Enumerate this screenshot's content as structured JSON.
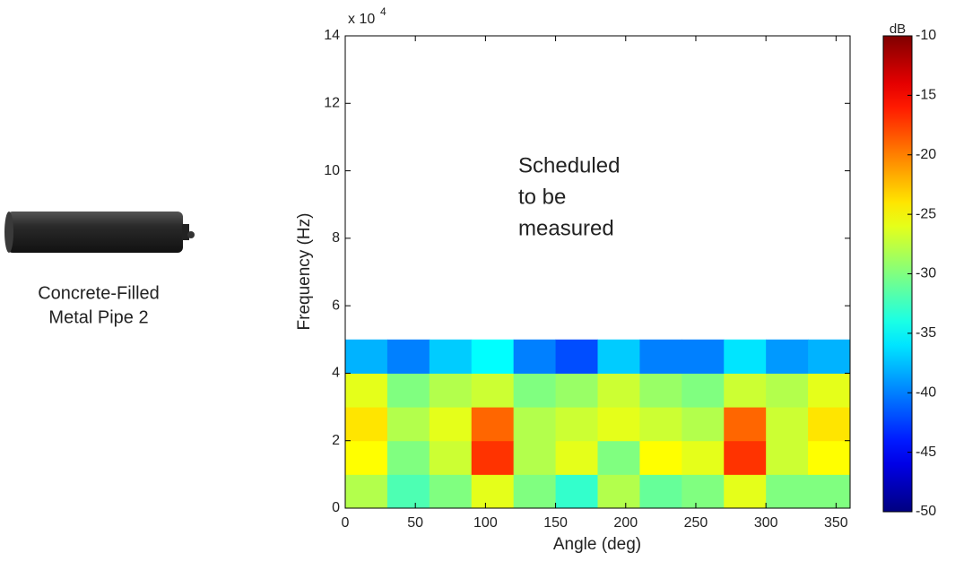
{
  "caption": [
    "Concrete-Filled",
    "Metal Pipe 2"
  ],
  "chart_data": {
    "type": "heatmap",
    "xlabel": "Angle (deg)",
    "ylabel": "Frequency (Hz)",
    "annotation": [
      "Scheduled",
      "to be",
      "measured"
    ],
    "y_scale_label": "x 10",
    "y_scale_exponent": "4",
    "xlim": [
      0,
      360
    ],
    "xticks": [
      0,
      50,
      100,
      150,
      200,
      250,
      300,
      350
    ],
    "ylim": [
      0,
      140000
    ],
    "yticks": [
      {
        "value": 0,
        "label": "0"
      },
      {
        "value": 20000,
        "label": "2"
      },
      {
        "value": 40000,
        "label": "4"
      },
      {
        "value": 60000,
        "label": "6"
      },
      {
        "value": 80000,
        "label": "8"
      },
      {
        "value": 100000,
        "label": "10"
      },
      {
        "value": 120000,
        "label": "12"
      },
      {
        "value": 140000,
        "label": "14"
      }
    ],
    "x": [
      15,
      45,
      75,
      105,
      135,
      165,
      195,
      225,
      255,
      285,
      315,
      345
    ],
    "y": [
      5000,
      15000,
      25000,
      35000,
      45000
    ],
    "z": [
      [
        -28,
        -32,
        -30,
        -26,
        -30,
        -33,
        -28,
        -31,
        -30,
        -26,
        -30,
        -30
      ],
      [
        -25,
        -30,
        -27,
        -17,
        -28,
        -26,
        -30,
        -25,
        -26,
        -17,
        -27,
        -25
      ],
      [
        -24,
        -28,
        -26,
        -19,
        -28,
        -27,
        -26,
        -27,
        -28,
        -19,
        -27,
        -24
      ],
      [
        -26,
        -30,
        -28,
        -27,
        -30,
        -29,
        -27,
        -29,
        -30,
        -27,
        -28,
        -26
      ],
      [
        -38,
        -40,
        -37,
        -35,
        -40,
        -42,
        -37,
        -40,
        -40,
        -36,
        -39,
        -38
      ]
    ],
    "colormap": "jet",
    "colorbar": {
      "label": "dB",
      "lim": [
        -50,
        -10
      ],
      "ticks": [
        -50,
        -45,
        -40,
        -35,
        -30,
        -25,
        -20,
        -15,
        -10
      ]
    }
  }
}
